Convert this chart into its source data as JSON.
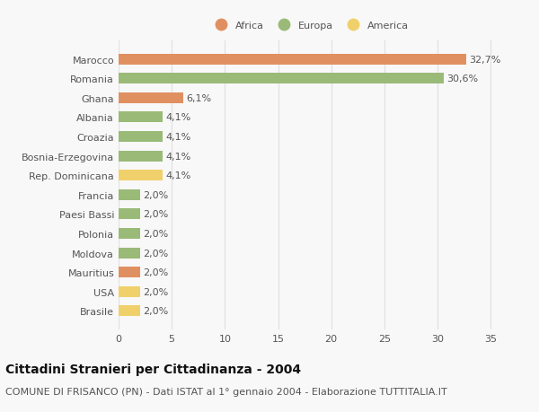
{
  "categories": [
    "Brasile",
    "USA",
    "Mauritius",
    "Moldova",
    "Polonia",
    "Paesi Bassi",
    "Francia",
    "Rep. Dominicana",
    "Bosnia-Erzegovina",
    "Croazia",
    "Albania",
    "Ghana",
    "Romania",
    "Marocco"
  ],
  "values": [
    2.0,
    2.0,
    2.0,
    2.0,
    2.0,
    2.0,
    2.0,
    4.1,
    4.1,
    4.1,
    4.1,
    6.1,
    30.6,
    32.7
  ],
  "colors": [
    "#f0d06a",
    "#f0d06a",
    "#e09060",
    "#9aba78",
    "#9aba78",
    "#9aba78",
    "#9aba78",
    "#f0d06a",
    "#9aba78",
    "#9aba78",
    "#9aba78",
    "#e09060",
    "#9aba78",
    "#e09060"
  ],
  "labels": [
    "2,0%",
    "2,0%",
    "2,0%",
    "2,0%",
    "2,0%",
    "2,0%",
    "2,0%",
    "4,1%",
    "4,1%",
    "4,1%",
    "4,1%",
    "6,1%",
    "30,6%",
    "32,7%"
  ],
  "legend": [
    {
      "label": "Africa",
      "color": "#e09060"
    },
    {
      "label": "Europa",
      "color": "#9aba78"
    },
    {
      "label": "America",
      "color": "#f0d06a"
    }
  ],
  "xlim": [
    0,
    36
  ],
  "xticks": [
    0,
    5,
    10,
    15,
    20,
    25,
    30,
    35
  ],
  "title": "Cittadini Stranieri per Cittadinanza - 2004",
  "subtitle": "COMUNE DI FRISANCO (PN) - Dati ISTAT al 1° gennaio 2004 - Elaborazione TUTTITALIA.IT",
  "background_color": "#f8f8f8",
  "grid_color": "#e0e0e0",
  "text_color": "#555555",
  "title_fontsize": 10,
  "subtitle_fontsize": 8,
  "label_fontsize": 8,
  "tick_fontsize": 8,
  "bar_height": 0.55
}
